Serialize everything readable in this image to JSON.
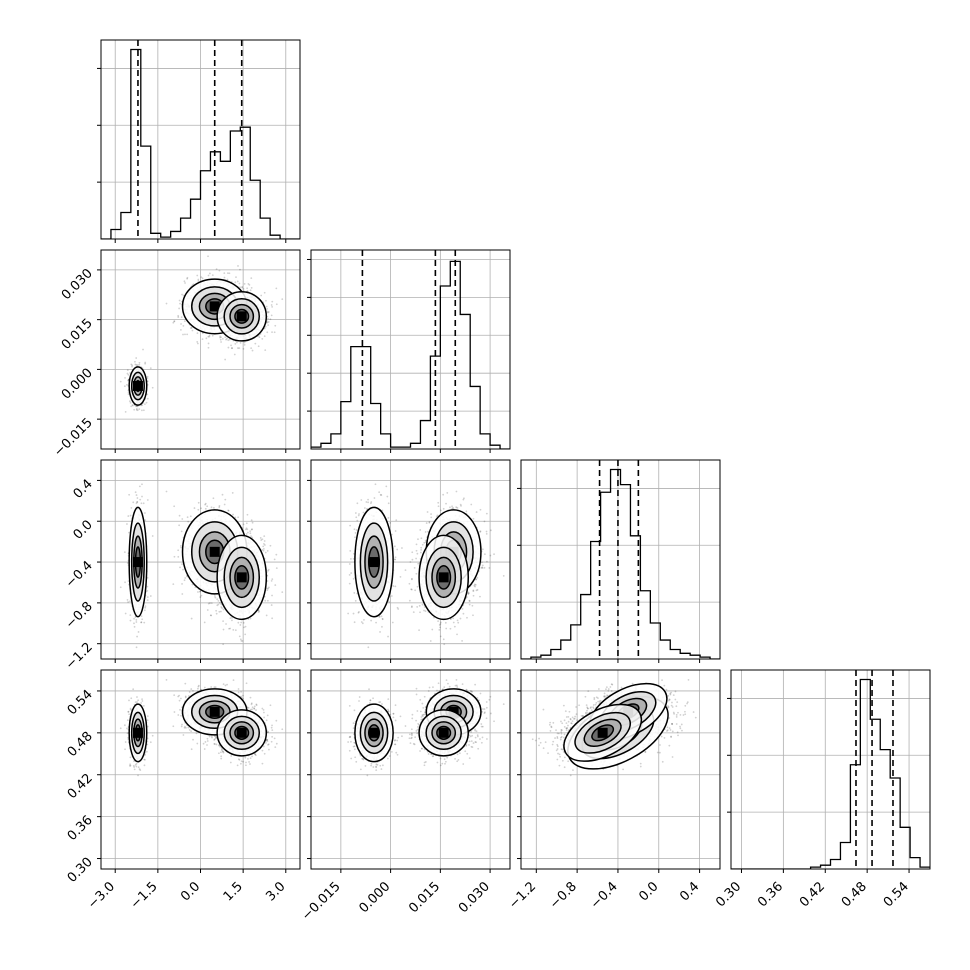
{
  "chart_data": {
    "type": "corner",
    "n_params": 4,
    "params": [
      {
        "ticks": [
          -3.0,
          -1.5,
          0.0,
          1.5,
          3.0
        ],
        "tick_labels": [
          "−3.0",
          "−1.5",
          "0.0",
          "1.5",
          "3.0"
        ],
        "range": [
          -3.5,
          3.5
        ],
        "quantiles": [
          -2.2,
          0.5,
          1.45
        ],
        "hist": {
          "edges": [
            -3.5,
            -3.15,
            -2.8,
            -2.45,
            -2.1,
            -1.75,
            -1.4,
            -1.05,
            -0.7,
            -0.35,
            0.0,
            0.35,
            0.7,
            1.05,
            1.4,
            1.75,
            2.1,
            2.45,
            2.8,
            3.15,
            3.5
          ],
          "counts": [
            0,
            0.05,
            0.14,
            1.0,
            0.49,
            0.03,
            0.01,
            0.04,
            0.11,
            0.21,
            0.36,
            0.46,
            0.41,
            0.57,
            0.59,
            0.31,
            0.11,
            0.02,
            0,
            0
          ]
        },
        "hist_ymax": 1.05,
        "hist_yticks": [
          0.3,
          0.6,
          0.9
        ]
      },
      {
        "ticks": [
          -0.015,
          0.0,
          0.015,
          0.03
        ],
        "tick_labels": [
          "−0.015",
          "0.000",
          "0.015",
          "0.030"
        ],
        "range": [
          -0.024,
          0.036
        ],
        "quantiles": [
          -0.0085,
          0.0135,
          0.0195
        ],
        "hist": {
          "edges": [
            -0.024,
            -0.021,
            -0.018,
            -0.015,
            -0.012,
            -0.009,
            -0.006,
            -0.003,
            0.0,
            0.003,
            0.006,
            0.009,
            0.012,
            0.015,
            0.018,
            0.021,
            0.024,
            0.027,
            0.03,
            0.033,
            0.036
          ],
          "counts": [
            0.01,
            0.03,
            0.08,
            0.25,
            0.54,
            0.54,
            0.24,
            0.08,
            0.01,
            0.01,
            0.03,
            0.15,
            0.49,
            0.86,
            0.99,
            0.71,
            0.33,
            0.08,
            0.02,
            0
          ]
        },
        "hist_ymax": 1.05,
        "hist_yticks": [
          0.2,
          0.4,
          0.6,
          0.8,
          1.0
        ]
      },
      {
        "ticks": [
          -1.2,
          -0.8,
          -0.4,
          0.0,
          0.4
        ],
        "tick_labels": [
          "−1.2",
          "−0.8",
          "−0.4",
          "0.0",
          "0.4"
        ],
        "range": [
          -1.35,
          0.6
        ],
        "quantiles": [
          -0.58,
          -0.4,
          -0.2
        ],
        "hist": {
          "edges": [
            -1.35,
            -1.2525,
            -1.155,
            -1.0575,
            -0.96,
            -0.8625,
            -0.765,
            -0.6675,
            -0.57,
            -0.4725,
            -0.375,
            -0.2775,
            -0.18,
            -0.0825,
            0.015,
            0.1125,
            0.21,
            0.3075,
            0.405,
            0.5025,
            0.6
          ],
          "counts": [
            0.0,
            0.01,
            0.02,
            0.05,
            0.1,
            0.18,
            0.34,
            0.62,
            0.88,
            1.0,
            0.92,
            0.65,
            0.36,
            0.19,
            0.1,
            0.05,
            0.03,
            0.02,
            0.01,
            0
          ]
        },
        "hist_ymax": 1.05,
        "hist_yticks": [
          0.3,
          0.6,
          0.9
        ]
      },
      {
        "ticks": [
          0.3,
          0.36,
          0.42,
          0.48,
          0.54
        ],
        "tick_labels": [
          "0.30",
          "0.36",
          "0.42",
          "0.48",
          "0.54"
        ],
        "range": [
          0.285,
          0.57
        ],
        "quantiles": [
          0.464,
          0.487,
          0.517
        ],
        "hist": {
          "edges": [
            0.285,
            0.29925,
            0.3135,
            0.32775,
            0.342,
            0.35625,
            0.3705,
            0.38475,
            0.399,
            0.41325,
            0.4275,
            0.44175,
            0.456,
            0.47025,
            0.4845,
            0.49875,
            0.513,
            0.52725,
            0.5415,
            0.55575,
            0.57
          ],
          "counts": [
            0,
            0,
            0,
            0,
            0,
            0,
            0,
            0,
            0.01,
            0.02,
            0.05,
            0.14,
            0.55,
            1.0,
            0.79,
            0.63,
            0.48,
            0.22,
            0.06,
            0.01
          ]
        },
        "hist_ymax": 1.05,
        "hist_yticks": [
          0.3,
          0.6,
          0.9
        ]
      }
    ],
    "modes": [
      [
        -2.2,
        -0.005,
        -0.4,
        0.48
      ],
      [
        0.5,
        0.019,
        -0.3,
        0.51
      ],
      [
        1.45,
        0.016,
        -0.55,
        0.48
      ]
    ],
    "mode_spreads": [
      [
        0.15,
        0.0028,
        0.26,
        0.02
      ],
      [
        0.55,
        0.004,
        0.2,
        0.016
      ],
      [
        0.42,
        0.0036,
        0.2,
        0.016
      ]
    ],
    "mode_weights": [
      0.26,
      0.34,
      0.4
    ]
  }
}
